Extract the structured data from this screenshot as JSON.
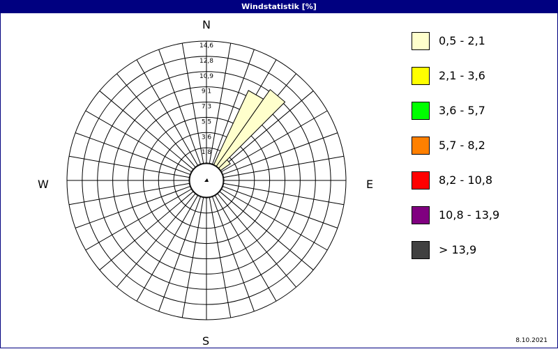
{
  "window": {
    "title": "Windstatistik [%]"
  },
  "compass": {
    "north": "N",
    "east": "E",
    "south": "S",
    "west": "W"
  },
  "date": "8.10.2021",
  "chart_data": {
    "type": "polar-bar",
    "title": "Windstatistik [%]",
    "radial_ticks": [
      "1,8",
      "3,6",
      "5,5",
      "7,3",
      "9,1",
      "10,9",
      "12,8",
      "14,6"
    ],
    "rmax": 14.6,
    "grid": true,
    "legend_position": "right",
    "legend": [
      {
        "label": "0,5 - 2,1",
        "color": "#ffffcc"
      },
      {
        "label": "2,1 - 3,6",
        "color": "#ffff00"
      },
      {
        "label": "3,6 - 5,7",
        "color": "#00ff00"
      },
      {
        "label": "5,7 - 8,2",
        "color": "#ff8000"
      },
      {
        "label": "8,2 - 10,8",
        "color": "#ff0000"
      },
      {
        "label": "10,8 - 13,9",
        "color": "#800080"
      },
      {
        "label": " > 13,9",
        "color": "#404040"
      }
    ],
    "sectors": [
      {
        "direction_deg": 30,
        "values": [
          9.8
        ]
      },
      {
        "direction_deg": 40,
        "values": [
          11.2
        ]
      },
      {
        "direction_deg": 50,
        "values": [
          1.4
        ]
      }
    ]
  }
}
